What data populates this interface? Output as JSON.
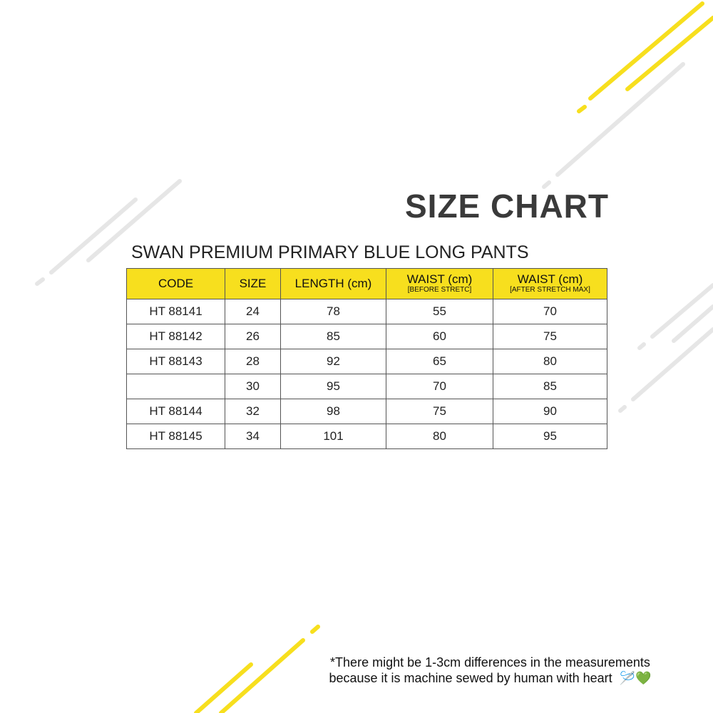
{
  "title": "SIZE CHART",
  "product": "SWAN PREMIUM PRIMARY BLUE LONG PANTS",
  "accent_color": "#f7df1e",
  "table": {
    "headers": [
      {
        "main": "CODE",
        "sub": ""
      },
      {
        "main": "SIZE",
        "sub": ""
      },
      {
        "main": "LENGTH (cm)",
        "sub": ""
      },
      {
        "main": "WAIST (cm)",
        "sub": "[BEFORE STRETC]"
      },
      {
        "main": "WAIST (cm)",
        "sub": "[AFTER STRETCH MAX]"
      }
    ],
    "rows": [
      [
        "HT 88141",
        "24",
        "78",
        "55",
        "70"
      ],
      [
        "HT 88142",
        "26",
        "85",
        "60",
        "75"
      ],
      [
        "HT 88143",
        "28",
        "92",
        "65",
        "80"
      ],
      [
        "",
        "30",
        "95",
        "70",
        "85"
      ],
      [
        "HT 88144",
        "32",
        "98",
        "75",
        "90"
      ],
      [
        "HT 88145",
        "34",
        "101",
        "80",
        "95"
      ]
    ]
  },
  "note": {
    "line1": "*There might be 1-3cm differences in the measurements",
    "line2": "because it is machine sewed by human with heart",
    "emoji": "🪡💚"
  }
}
